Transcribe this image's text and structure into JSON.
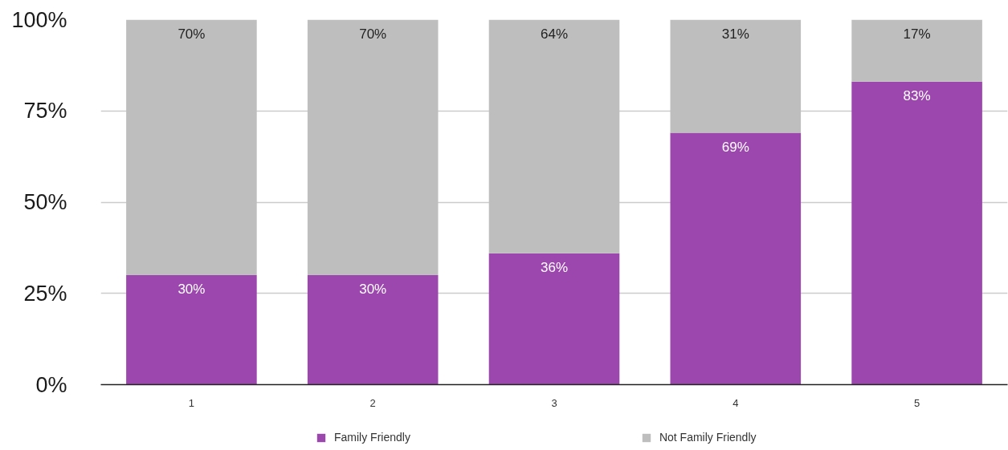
{
  "chart_data": {
    "type": "bar",
    "categories": [
      "1",
      "2",
      "3",
      "4",
      "5"
    ],
    "stacked": true,
    "series": [
      {
        "name": "Family Friendly",
        "color": "#9c47ad",
        "values": [
          30,
          30,
          36,
          69,
          83
        ],
        "value_labels": [
          "30%",
          "30%",
          "36%",
          "69%",
          "83%"
        ]
      },
      {
        "name": "Not Family Friendly",
        "color": "#bebebe",
        "values": [
          70,
          70,
          64,
          31,
          17
        ],
        "value_labels": [
          "70%",
          "70%",
          "64%",
          "31%",
          "17%"
        ]
      }
    ],
    "ylim": [
      0,
      100
    ],
    "yticks": [
      {
        "value": 0,
        "label": "0%"
      },
      {
        "value": 25,
        "label": "25%"
      },
      {
        "value": 50,
        "label": "50%"
      },
      {
        "value": 75,
        "label": "75%"
      },
      {
        "value": 100,
        "label": "100%"
      }
    ],
    "grid": "y",
    "legend": "bottom"
  }
}
